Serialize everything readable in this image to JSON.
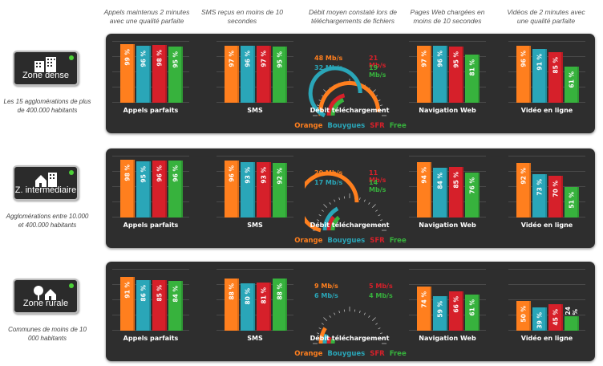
{
  "headers": [
    "Appels maintenus 2 minutes avec une qualité parfaite",
    "SMS reçus en moins de 10 secondes",
    "Débit moyen constaté lors de téléchargements de fichiers",
    "Pages Web chargées en moins de 10 secondes",
    "Vidéos de 2 minutes avec une qualité parfaite"
  ],
  "colors": {
    "Orange": "#ff7f1e",
    "Bouygues": "#2aa6b8",
    "SFR": "#d6202a",
    "Free": "#37b23d"
  },
  "operators": [
    "Orange",
    "Bouygues",
    "SFR",
    "Free"
  ],
  "chart_data": [
    {
      "type": "bar",
      "zone": "Zone dense",
      "description": "Les 15 agglomérations de plus de 400.000 habitants",
      "ylim": [
        0,
        100
      ],
      "metrics": [
        {
          "title": "Appels parfaits",
          "values": [
            99,
            96,
            98,
            95
          ],
          "labels": [
            "99 %",
            "96 %",
            "98 %",
            "95 %"
          ]
        },
        {
          "title": "SMS",
          "values": [
            97,
            96,
            97,
            95
          ],
          "labels": [
            "97 %",
            "96 %",
            "97 %",
            "95 %"
          ]
        },
        {
          "title": "Navigation Web",
          "values": [
            97,
            96,
            95,
            81
          ],
          "labels": [
            "97 %",
            "96 %",
            "95 %",
            "81 %"
          ]
        },
        {
          "title": "Vidéo en ligne",
          "values": [
            96,
            91,
            85,
            61
          ],
          "labels": [
            "96 %",
            "91 %",
            "85 %",
            "61 %"
          ]
        }
      ],
      "throughput": {
        "title": "Débit téléchargement",
        "values": [
          48,
          32,
          21,
          19
        ],
        "labels": [
          "48 Mb/s",
          "32 Mb/s",
          "21 Mb/s",
          "19 Mb/s"
        ],
        "max": 50
      }
    },
    {
      "type": "bar",
      "zone": "Z. intermédiaire",
      "description": "Agglomérations entre 10.000 et 400.000 habitants",
      "ylim": [
        0,
        100
      ],
      "metrics": [
        {
          "title": "Appels parfaits",
          "values": [
            98,
            95,
            96,
            96
          ],
          "labels": [
            "98 %",
            "95 %",
            "96 %",
            "96 %"
          ]
        },
        {
          "title": "SMS",
          "values": [
            96,
            93,
            93,
            92
          ],
          "labels": [
            "96 %",
            "93 %",
            "93 %",
            "92 %"
          ]
        },
        {
          "title": "Navigation Web",
          "values": [
            94,
            84,
            85,
            76
          ],
          "labels": [
            "94 %",
            "84 %",
            "85 %",
            "76 %"
          ]
        },
        {
          "title": "Vidéo en ligne",
          "values": [
            92,
            73,
            70,
            51
          ],
          "labels": [
            "92 %",
            "73 %",
            "70 %",
            "51 %"
          ]
        }
      ],
      "throughput": {
        "title": "Débit téléchargement",
        "values": [
          29,
          17,
          11,
          14
        ],
        "labels": [
          "29 Mb/s",
          "17 Mb/s",
          "11 Mb/s",
          "14 Mb/s"
        ],
        "max": 50
      }
    },
    {
      "type": "bar",
      "zone": "Zone rurale",
      "description": "Communes de moins de 10 000 habitants",
      "ylim": [
        0,
        100
      ],
      "metrics": [
        {
          "title": "Appels parfaits",
          "values": [
            91,
            86,
            85,
            84
          ],
          "labels": [
            "91 %",
            "86 %",
            "85 %",
            "84 %"
          ]
        },
        {
          "title": "SMS",
          "values": [
            88,
            80,
            81,
            88
          ],
          "labels": [
            "88 %",
            "80 %",
            "81 %",
            "88 %"
          ]
        },
        {
          "title": "Navigation Web",
          "values": [
            74,
            59,
            66,
            61
          ],
          "labels": [
            "74 %",
            "59 %",
            "66 %",
            "61 %"
          ]
        },
        {
          "title": "Vidéo en ligne",
          "values": [
            50,
            39,
            45,
            24
          ],
          "labels": [
            "50 %",
            "39 %",
            "45 %",
            "24 %"
          ]
        }
      ],
      "throughput": {
        "title": "Débit téléchargement",
        "values": [
          9,
          6,
          5,
          4
        ],
        "labels": [
          "9 Mb/s",
          "6 Mb/s",
          "5 Mb/s",
          "4 Mb/s"
        ],
        "max": 50
      }
    }
  ]
}
